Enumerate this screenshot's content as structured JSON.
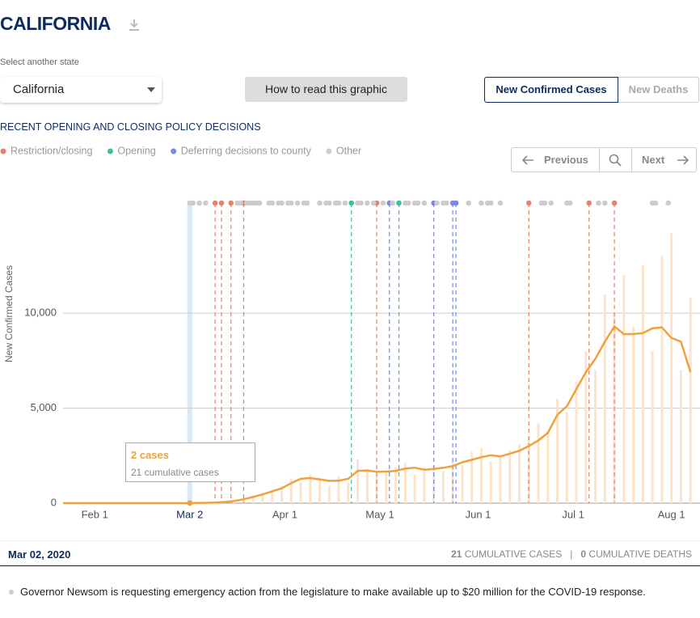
{
  "header": {
    "title": "CALIFORNIA"
  },
  "state_select": {
    "label": "Select another state",
    "value": "California"
  },
  "help_button": "How to read this graphic",
  "tabs": [
    "New Confirmed Cases",
    "New Deaths"
  ],
  "section_title": "RECENT OPENING AND CLOSING POLICY DECISIONS",
  "pager": {
    "previous": "Previous",
    "next": "Next"
  },
  "tooltip": {
    "title": "2 cases",
    "detail": "21 cumulative cases"
  },
  "footer": {
    "date": "Mar 02, 2020",
    "cases": {
      "count": 21,
      "label": "CUMULATIVE CASES"
    },
    "separator": "|",
    "deaths": {
      "count": 0,
      "label": "CUMULATIVE DEATHS"
    }
  },
  "note": "Governor Newsom is requesting emergency action from the legislature to make available up to $20 million for the COVID-19 response.",
  "chart_data": {
    "type": "line",
    "y_label": "New Confirmed Cases",
    "xlim": [
      "2020-01-22",
      "2020-08-09"
    ],
    "xticks": [
      {
        "value": "2020-02-01",
        "label": "Feb 1"
      },
      {
        "value": "2020-03-02",
        "label": "Mar 2"
      },
      {
        "value": "2020-04-01",
        "label": "Apr 1"
      },
      {
        "value": "2020-05-01",
        "label": "May 1"
      },
      {
        "value": "2020-06-01",
        "label": "Jun 1"
      },
      {
        "value": "2020-07-01",
        "label": "Jul 1"
      },
      {
        "value": "2020-08-01",
        "label": "Aug 1"
      }
    ],
    "ylim": [
      0,
      15500
    ],
    "yticks": [
      0,
      {
        "value": 5000,
        "label": "5,000"
      },
      {
        "value": 10000,
        "label": "10,000"
      }
    ],
    "grid": true,
    "highlight": {
      "x": "2020-03-02",
      "value": 2
    },
    "x": [
      "2020-01-22",
      "2020-01-25",
      "2020-01-28",
      "2020-01-31",
      "2020-02-03",
      "2020-02-06",
      "2020-02-09",
      "2020-02-12",
      "2020-02-15",
      "2020-02-18",
      "2020-02-21",
      "2020-02-24",
      "2020-02-27",
      "2020-03-01",
      "2020-03-04",
      "2020-03-07",
      "2020-03-10",
      "2020-03-13",
      "2020-03-16",
      "2020-03-19",
      "2020-03-22",
      "2020-03-25",
      "2020-03-28",
      "2020-03-31",
      "2020-04-03",
      "2020-04-06",
      "2020-04-09",
      "2020-04-12",
      "2020-04-15",
      "2020-04-18",
      "2020-04-21",
      "2020-04-24",
      "2020-04-27",
      "2020-04-30",
      "2020-05-03",
      "2020-05-06",
      "2020-05-09",
      "2020-05-12",
      "2020-05-15",
      "2020-05-18",
      "2020-05-21",
      "2020-05-24",
      "2020-05-27",
      "2020-05-30",
      "2020-06-02",
      "2020-06-05",
      "2020-06-08",
      "2020-06-11",
      "2020-06-14",
      "2020-06-17",
      "2020-06-20",
      "2020-06-23",
      "2020-06-26",
      "2020-06-29",
      "2020-07-02",
      "2020-07-05",
      "2020-07-08",
      "2020-07-11",
      "2020-07-14",
      "2020-07-17",
      "2020-07-20",
      "2020-07-23",
      "2020-07-26",
      "2020-07-29",
      "2020-08-01",
      "2020-08-04",
      "2020-08-07"
    ],
    "series": [
      {
        "type": "bar",
        "color": "#fce4cb",
        "values": [
          0,
          0,
          0,
          0,
          0,
          0,
          0,
          0,
          0,
          0,
          0,
          0,
          0,
          3,
          12,
          20,
          40,
          70,
          150,
          250,
          400,
          520,
          700,
          900,
          1300,
          1100,
          1500,
          1200,
          900,
          1400,
          1100,
          2300,
          1800,
          1500,
          1600,
          1900,
          2100,
          1500,
          1900,
          2000,
          1700,
          2200,
          2000,
          2700,
          2900,
          2200,
          2500,
          2800,
          3100,
          3500,
          4200,
          3800,
          5500,
          4800,
          6400,
          8000,
          7000,
          11000,
          10000,
          12000,
          9300,
          12500,
          8000,
          13000,
          14200,
          7000,
          10800
        ]
      },
      {
        "type": "line",
        "color": "#f0a03c",
        "values": [
          0,
          0,
          0,
          0,
          0,
          0,
          0,
          0,
          0,
          0,
          0,
          0,
          0,
          2,
          8,
          18,
          30,
          60,
          110,
          200,
          330,
          460,
          620,
          780,
          1050,
          1280,
          1320,
          1250,
          1170,
          1180,
          1280,
          1700,
          1720,
          1650,
          1660,
          1700,
          1820,
          1860,
          1760,
          1800,
          1860,
          1950,
          2150,
          2280,
          2420,
          2520,
          2460,
          2600,
          2760,
          3000,
          3300,
          3700,
          4650,
          5100,
          6000,
          6900,
          7600,
          8500,
          9300,
          8900,
          8900,
          8950,
          9200,
          9250,
          8700,
          8500,
          6900
        ]
      }
    ],
    "policies": [
      {
        "name": "Restriction/closing",
        "color": "#e8806a",
        "lines": true,
        "dates": [
          "2020-03-10",
          "2020-03-12",
          "2020-03-15",
          "2020-03-19",
          "2020-04-30",
          "2020-06-17",
          "2020-07-06",
          "2020-07-14"
        ]
      },
      {
        "name": "Opening",
        "color": "#3fbf9f",
        "lines": true,
        "dates": [
          "2020-04-22",
          "2020-05-07"
        ]
      },
      {
        "name": "Deferring decisions to county",
        "color": "#7b85ea",
        "lines": true,
        "dates": [
          "2020-05-04",
          "2020-05-18",
          "2020-05-24",
          "2020-05-25"
        ]
      },
      {
        "name": "Other",
        "color": "#cccccc",
        "lines": false,
        "dates": [
          "2020-03-02",
          "2020-03-03",
          "2020-03-05",
          "2020-03-07",
          "2020-03-17",
          "2020-03-18",
          "2020-03-20",
          "2020-03-21",
          "2020-03-22",
          "2020-03-23",
          "2020-03-24",
          "2020-03-27",
          "2020-03-28",
          "2020-03-30",
          "2020-03-31",
          "2020-04-02",
          "2020-04-03",
          "2020-04-05",
          "2020-04-07",
          "2020-04-08",
          "2020-04-12",
          "2020-04-14",
          "2020-04-15",
          "2020-04-17",
          "2020-04-18",
          "2020-04-20",
          "2020-04-24",
          "2020-04-25",
          "2020-04-27",
          "2020-04-29",
          "2020-05-02",
          "2020-05-05",
          "2020-05-09",
          "2020-05-10",
          "2020-05-12",
          "2020-05-13",
          "2020-05-15",
          "2020-05-19",
          "2020-05-21",
          "2020-05-22",
          "2020-05-29",
          "2020-06-02",
          "2020-06-04",
          "2020-06-05",
          "2020-06-08",
          "2020-06-21",
          "2020-06-22",
          "2020-06-24",
          "2020-06-29",
          "2020-06-30",
          "2020-07-09",
          "2020-07-11",
          "2020-07-26",
          "2020-07-27",
          "2020-07-31"
        ]
      }
    ]
  }
}
